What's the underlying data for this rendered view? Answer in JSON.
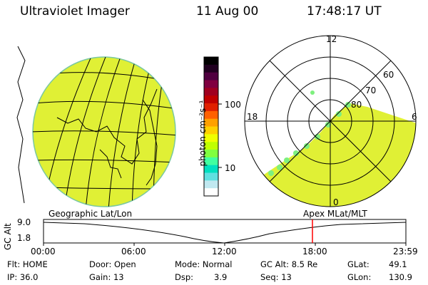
{
  "header": {
    "title": "Ultraviolet Imager",
    "date": "11 Aug 00",
    "time": "17:48:17 UT"
  },
  "colorbar": {
    "unit_label": "photon cm⁻²s⁻¹",
    "tick_labels": [
      "100",
      "10"
    ],
    "colors": [
      "#000000",
      "#200020",
      "#500040",
      "#800040",
      "#a00020",
      "#c00000",
      "#e02000",
      "#ff6000",
      "#ffa000",
      "#ffd000",
      "#f0ff00",
      "#c0ff00",
      "#80ff40",
      "#40ffa0",
      "#00e0c0",
      "#60e0e0",
      "#c0e8f0",
      "#ffffff"
    ]
  },
  "left_map": {
    "label": "Geographic Lat/Lon",
    "fill_color": "#e0f035"
  },
  "right_map": {
    "label": "Apex  MLat/MLT",
    "fill_color": "#e0f035",
    "mlt_labels": {
      "top": "12",
      "left": "18",
      "right": "6",
      "bottom": "0"
    },
    "lat_labels": [
      "60",
      "70",
      "80"
    ]
  },
  "altitude_plot": {
    "ylabel": "GC Alt",
    "y_ticks": [
      "9.0",
      "1.8"
    ],
    "x_ticks": [
      "00:00",
      "06:00",
      "12:00",
      "18:00",
      "23:59"
    ],
    "marker_color": "#ff0000"
  },
  "status": {
    "flt": "Flt: HOME",
    "ip": "IP: 36.0",
    "door": "Door: Open",
    "gain": "Gain: 13",
    "mode": "Mode: Normal",
    "dsp_label": "Dsp:",
    "dsp_value": "3.9",
    "gc_alt": "GC Alt: 8.5 Re",
    "seq": "Seq: 13",
    "glat_label": "GLat:",
    "glat_value": "49.1",
    "glon_label": "GLon:",
    "glon_value": "130.9"
  }
}
